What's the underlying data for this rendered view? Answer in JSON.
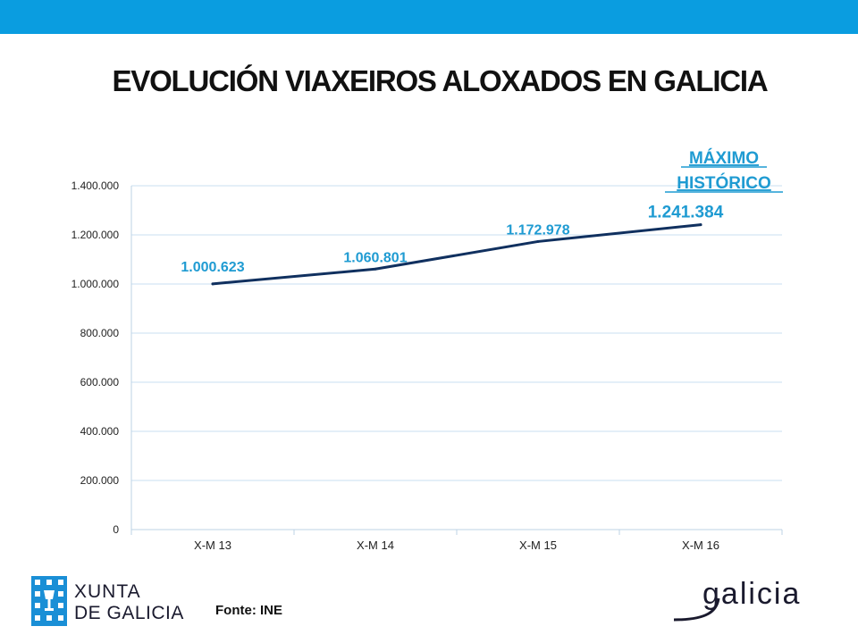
{
  "slide": {
    "title": "EVOLUCIÓN VIAXEIROS ALOXADOS EN GALICIA",
    "source": "Fonte: INE",
    "brand_text_line1": "XUNTA",
    "brand_text_line2": "DE GALICIA",
    "right_logo_text": "galicia"
  },
  "colors": {
    "top_bar": "#0a9de0",
    "line": "#10305f",
    "data_label": "#1f9bd2",
    "highlight_label": "#1f9bd2",
    "gridline": "#c9dff0",
    "brand_blue": "#1a8fd6"
  },
  "chart_data": {
    "type": "line",
    "categories": [
      "X-M 13",
      "X-M 14",
      "X-M 15",
      "X-M 16"
    ],
    "values": [
      1000623,
      1060801,
      1172978,
      1241384
    ],
    "data_labels": [
      "1.000.623",
      "1.060.801",
      "1.172.978",
      "1.241.384"
    ],
    "y_ticks": [
      0,
      200000,
      400000,
      600000,
      800000,
      1000000,
      1200000,
      1400000
    ],
    "y_tick_labels": [
      "0",
      "200.000",
      "400.000",
      "600.000",
      "800.000",
      "1.000.000",
      "1.200.000",
      "1.400.000"
    ],
    "ylim": [
      0,
      1400000
    ],
    "grid": true,
    "annotation": {
      "line1": "MÁXIMO",
      "line2": "HISTÓRICO",
      "category_index": 3
    }
  }
}
